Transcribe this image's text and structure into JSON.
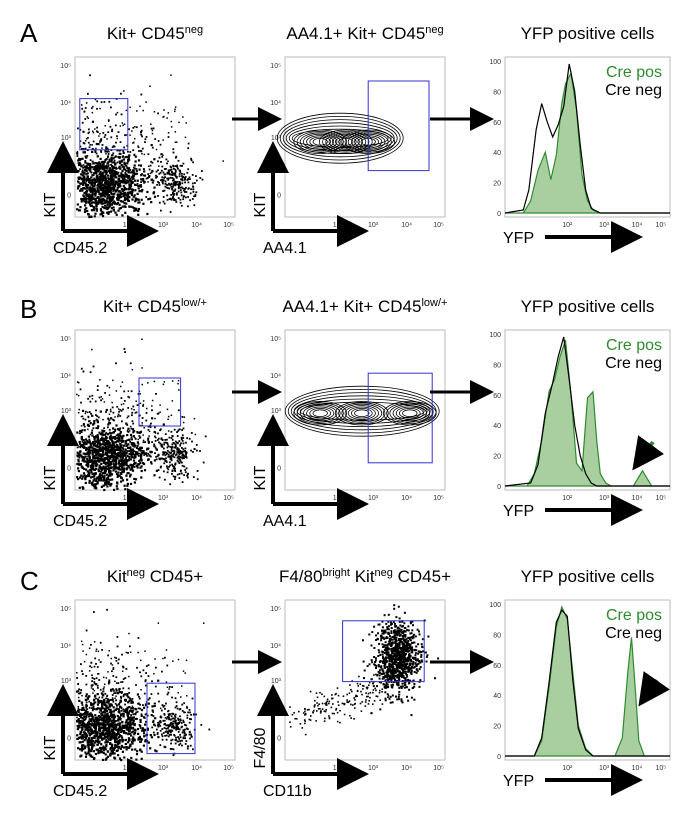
{
  "figure": {
    "panels": [
      {
        "letter": "A",
        "plots": [
          {
            "kind": "scatter",
            "title_main": "Kit+ CD45",
            "title_sup": "neg",
            "title_tail": "",
            "xlabel": "CD45.2",
            "ylabel": "KIT"
          },
          {
            "kind": "contour",
            "title_main": "AA4.1+ Kit+ CD45",
            "title_sup": "neg",
            "title_tail": "",
            "xlabel": "AA4.1",
            "ylabel": "KIT"
          },
          {
            "kind": "histogram",
            "title_main": "YFP positive cells",
            "title_sup": "",
            "title_tail": "",
            "xlabel": "YFP",
            "legend": [
              "Cre pos",
              "Cre neg"
            ]
          }
        ]
      },
      {
        "letter": "B",
        "plots": [
          {
            "kind": "scatter",
            "title_main": "Kit+ CD45",
            "title_sup": "low/+",
            "title_tail": "",
            "xlabel": "CD45.2",
            "ylabel": "KIT"
          },
          {
            "kind": "contour",
            "title_main": "AA4.1+ Kit+ CD45",
            "title_sup": "low/+",
            "title_tail": "",
            "xlabel": "AA4.1",
            "ylabel": "KIT"
          },
          {
            "kind": "histogram",
            "title_main": "YFP positive cells",
            "title_sup": "",
            "title_tail": "",
            "xlabel": "YFP",
            "legend": [
              "Cre pos",
              "Cre neg"
            ]
          }
        ]
      },
      {
        "letter": "C",
        "plots": [
          {
            "kind": "scatter",
            "title_main": "Kit",
            "title_sup": "neg",
            "title_tail": " CD45+",
            "xlabel": "CD45.2",
            "ylabel": "KIT"
          },
          {
            "kind": "scatter",
            "title_main": "F4/80",
            "title_sup": "bright",
            "title_tail": " Kit",
            "title_sup2": "neg",
            "title_tail2": " CD45+",
            "xlabel": "CD11b",
            "ylabel": "F4/80"
          },
          {
            "kind": "histogram",
            "title_main": "YFP positive cells",
            "title_sup": "",
            "title_tail": "",
            "xlabel": "YFP",
            "legend": [
              "Cre pos",
              "Cre neg"
            ]
          }
        ]
      }
    ],
    "x_ticks": [
      "0",
      "10²",
      "10³",
      "10⁴",
      "10⁵"
    ],
    "y_ticks": [
      "0",
      "10²",
      "10³",
      "10⁴",
      "10⁵"
    ],
    "hist_y_ticks": [
      "0",
      "20",
      "40",
      "60",
      "80",
      "100"
    ],
    "colors": {
      "cre_pos": "#2e8b2e",
      "cre_pos_fill": "#a9cfa0",
      "cre_neg": "#000000",
      "gate": "#3333cc"
    }
  },
  "chart_data": [
    {
      "panel": "A",
      "type": "histogram",
      "title": "YFP positive cells",
      "xlabel": "YFP",
      "ylabel": "",
      "ylim": [
        0,
        100
      ],
      "series": [
        {
          "name": "Cre pos",
          "x": [
            0.5,
            1.0,
            1.2,
            1.4,
            1.6,
            1.75,
            1.9,
            2.05,
            2.15,
            2.3,
            2.45,
            2.6,
            2.75,
            2.9,
            3.1,
            3.5,
            5.0
          ],
          "values": [
            0,
            0,
            8,
            28,
            40,
            22,
            38,
            72,
            85,
            92,
            68,
            25,
            8,
            2,
            0,
            0,
            0
          ]
        },
        {
          "name": "Cre neg",
          "x": [
            0.5,
            1.0,
            1.15,
            1.35,
            1.5,
            1.65,
            1.8,
            1.95,
            2.1,
            2.25,
            2.4,
            2.55,
            2.7,
            2.85,
            3.1,
            3.5,
            5.0
          ],
          "values": [
            0,
            2,
            15,
            55,
            72,
            60,
            50,
            58,
            70,
            98,
            80,
            45,
            15,
            3,
            0,
            0,
            0
          ]
        }
      ]
    },
    {
      "panel": "B",
      "type": "histogram",
      "title": "YFP positive cells",
      "xlabel": "YFP",
      "ylabel": "",
      "ylim": [
        0,
        100
      ],
      "series": [
        {
          "name": "Cre pos",
          "x": [
            0.5,
            1.1,
            1.3,
            1.5,
            1.7,
            1.85,
            2.0,
            2.15,
            2.3,
            2.45,
            2.6,
            2.75,
            2.9,
            3.0,
            3.1,
            3.25,
            3.4,
            3.6,
            4.0,
            4.15,
            4.25,
            4.35,
            4.5,
            5.0
          ],
          "values": [
            0,
            0,
            8,
            30,
            62,
            70,
            85,
            96,
            60,
            15,
            10,
            58,
            62,
            30,
            8,
            2,
            0,
            0,
            0,
            6,
            10,
            6,
            0,
            0
          ]
        },
        {
          "name": "Cre neg",
          "x": [
            0.5,
            1.2,
            1.4,
            1.6,
            1.8,
            1.95,
            2.1,
            2.25,
            2.4,
            2.55,
            2.7,
            2.85,
            3.0,
            3.5,
            5.0
          ],
          "values": [
            0,
            2,
            14,
            48,
            68,
            85,
            98,
            70,
            40,
            20,
            8,
            2,
            0,
            0,
            0
          ]
        }
      ]
    },
    {
      "panel": "C",
      "type": "histogram",
      "title": "YFP positive cells",
      "xlabel": "YFP",
      "ylabel": "",
      "ylim": [
        0,
        100
      ],
      "series": [
        {
          "name": "Cre pos",
          "x": [
            0.5,
            1.3,
            1.5,
            1.7,
            1.9,
            2.05,
            2.2,
            2.35,
            2.5,
            2.7,
            2.9,
            3.2,
            3.5,
            3.7,
            3.85,
            3.95,
            4.05,
            4.15,
            4.3,
            5.0
          ],
          "values": [
            0,
            0,
            10,
            45,
            85,
            98,
            90,
            55,
            20,
            5,
            0,
            0,
            0,
            12,
            55,
            78,
            45,
            10,
            0,
            0
          ]
        },
        {
          "name": "Cre neg",
          "x": [
            0.5,
            1.3,
            1.5,
            1.7,
            1.9,
            2.05,
            2.2,
            2.35,
            2.5,
            2.7,
            2.9,
            3.2,
            5.0
          ],
          "values": [
            0,
            0,
            12,
            48,
            88,
            96,
            92,
            50,
            18,
            4,
            0,
            0,
            0
          ]
        }
      ]
    }
  ]
}
